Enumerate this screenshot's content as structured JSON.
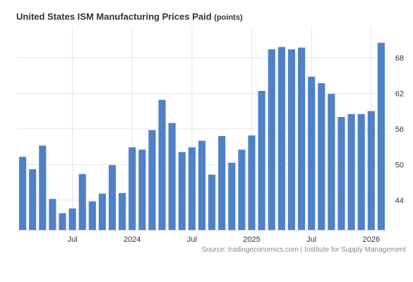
{
  "title": "United States ISM Manufacturing Prices Paid",
  "units": "(points)",
  "source": "Source: tradingeconomics.com | Institute for Supply Management",
  "colors": {
    "bar": "#4f81c7",
    "grid": "#e6e6e6",
    "text": "#333333",
    "source": "#888888"
  },
  "chart_data": {
    "type": "bar",
    "title": "United States ISM Manufacturing Prices Paid",
    "xlabel": "",
    "ylabel": "",
    "categories": [
      "2023-02",
      "2023-03",
      "2023-04",
      "2023-05",
      "2023-06",
      "2023-07",
      "2023-08",
      "2023-09",
      "2023-10",
      "2023-11",
      "2023-12",
      "2024-01",
      "2024-02",
      "2024-03",
      "2024-04",
      "2024-05",
      "2024-06",
      "2024-07",
      "2024-08",
      "2024-09",
      "2024-10",
      "2024-11",
      "2024-12",
      "2025-01",
      "2025-02",
      "2025-03",
      "2025-04",
      "2025-05",
      "2025-06",
      "2025-07",
      "2025-08",
      "2025-09",
      "2025-10",
      "2025-11",
      "2025-12",
      "2026-01",
      "2026-02"
    ],
    "values": [
      51.3,
      49.2,
      53.2,
      44.2,
      41.8,
      42.6,
      48.4,
      43.8,
      45.1,
      49.9,
      45.2,
      52.9,
      52.5,
      55.8,
      60.9,
      57.0,
      52.1,
      52.9,
      54.0,
      48.3,
      54.8,
      50.3,
      52.5,
      54.9,
      62.4,
      69.4,
      69.8,
      69.4,
      69.7,
      64.8,
      63.7,
      61.9,
      58.0,
      58.5,
      58.5,
      59.0,
      70.5
    ],
    "xticks": [
      {
        "label": "Jul",
        "at": "2023-07"
      },
      {
        "label": "2024",
        "at": "2024-01"
      },
      {
        "label": "Jul",
        "at": "2024-07"
      },
      {
        "label": "2025",
        "at": "2025-01"
      },
      {
        "label": "Jul",
        "at": "2025-07"
      },
      {
        "label": "2026",
        "at": "2026-01"
      }
    ],
    "yticks": [
      44,
      50,
      56,
      62,
      68
    ],
    "ylim": [
      39,
      73.2
    ],
    "grid": true,
    "y_axis_position": "right",
    "legend": "none"
  }
}
